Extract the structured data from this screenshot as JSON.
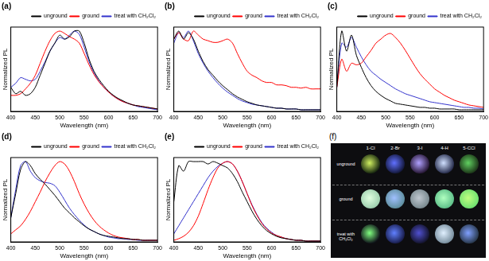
{
  "chart_data": [
    {
      "type": "line",
      "title": "(a)",
      "x_label": "Wavelength (nm)",
      "y_label": "Normalized PL",
      "tick_labels": "x",
      "legend": "upper right",
      "x": [
        400,
        410,
        420,
        430,
        440,
        450,
        460,
        470,
        480,
        490,
        500,
        510,
        520,
        530,
        540,
        550,
        560,
        570,
        580,
        590,
        600,
        610,
        620,
        630,
        640,
        650,
        660,
        670,
        680,
        690,
        700
      ],
      "xlim": [
        400,
        700
      ],
      "xticks": [
        400,
        450,
        500,
        550,
        600,
        650,
        700
      ],
      "ylim": [
        0,
        1.05
      ],
      "series": [
        {
          "name": "unground",
          "color": "#000000",
          "values": [
            0.3,
            0.22,
            0.25,
            0.2,
            0.22,
            0.3,
            0.45,
            0.6,
            0.75,
            0.85,
            0.95,
            0.9,
            0.93,
            1.0,
            1.0,
            0.85,
            0.65,
            0.5,
            0.4,
            0.32,
            0.25,
            0.2,
            0.16,
            0.13,
            0.1,
            0.08,
            0.07,
            0.06,
            0.05,
            0.04,
            0.03
          ]
        },
        {
          "name": "ground",
          "color": "#ff0000",
          "values": [
            0.2,
            0.2,
            0.22,
            0.28,
            0.35,
            0.45,
            0.6,
            0.75,
            0.88,
            0.97,
            1.0,
            0.97,
            0.93,
            0.9,
            0.85,
            0.72,
            0.58,
            0.46,
            0.37,
            0.3,
            0.24,
            0.19,
            0.15,
            0.12,
            0.1,
            0.08,
            0.07,
            0.06,
            0.05,
            0.04,
            0.03
          ]
        },
        {
          "name": "treat with CH₂Cl₂",
          "color": "#3333cc",
          "values": [
            0.3,
            0.35,
            0.42,
            0.4,
            0.38,
            0.4,
            0.5,
            0.62,
            0.75,
            0.85,
            0.92,
            0.9,
            0.95,
            1.0,
            0.96,
            0.8,
            0.62,
            0.48,
            0.38,
            0.3,
            0.24,
            0.19,
            0.15,
            0.12,
            0.1,
            0.08,
            0.06,
            0.05,
            0.04,
            0.03,
            0.02
          ]
        }
      ]
    },
    {
      "type": "line",
      "title": "(b)",
      "x_label": "Wavelength (nm)",
      "y_label": "Normalized PL",
      "tick_labels": "x",
      "legend": "upper right",
      "x": [
        400,
        410,
        420,
        430,
        440,
        450,
        460,
        470,
        480,
        490,
        500,
        510,
        520,
        530,
        540,
        550,
        560,
        570,
        580,
        590,
        600,
        610,
        620,
        630,
        640,
        650,
        660,
        670,
        680,
        690,
        700
      ],
      "xlim": [
        400,
        700
      ],
      "xticks": [
        400,
        450,
        500,
        550,
        600,
        650,
        700
      ],
      "ylim": [
        0,
        1.05
      ],
      "series": [
        {
          "name": "unground",
          "color": "#000000",
          "values": [
            0.9,
            1.0,
            0.9,
            0.98,
            0.9,
            0.75,
            0.62,
            0.52,
            0.45,
            0.38,
            0.32,
            0.27,
            0.22,
            0.18,
            0.15,
            0.12,
            0.1,
            0.08,
            0.07,
            0.06,
            0.05,
            0.04,
            0.04,
            0.03,
            0.03,
            0.03,
            0.02,
            0.02,
            0.02,
            0.02,
            0.02
          ]
        },
        {
          "name": "ground",
          "color": "#ff0000",
          "values": [
            0.9,
            0.98,
            0.9,
            0.88,
            1.0,
            0.95,
            0.9,
            0.88,
            0.86,
            0.86,
            0.88,
            0.9,
            0.85,
            0.72,
            0.6,
            0.5,
            0.45,
            0.42,
            0.38,
            0.36,
            0.36,
            0.33,
            0.33,
            0.32,
            0.3,
            0.3,
            0.29,
            0.3,
            0.28,
            0.28,
            0.28
          ]
        },
        {
          "name": "treat with CH₂Cl₂",
          "color": "#3333cc",
          "values": [
            0.85,
            0.98,
            0.92,
            1.0,
            0.88,
            0.72,
            0.6,
            0.5,
            0.42,
            0.35,
            0.29,
            0.24,
            0.2,
            0.16,
            0.13,
            0.11,
            0.09,
            0.08,
            0.07,
            0.06,
            0.05,
            0.04,
            0.04,
            0.03,
            0.03,
            0.03,
            0.02,
            0.02,
            0.02,
            0.02,
            0.02
          ]
        }
      ]
    },
    {
      "type": "line",
      "title": "(c)",
      "x_label": "Wavelength (nm)",
      "y_label": "Normalized PL",
      "tick_labels": "x",
      "legend": "upper right",
      "x": [
        400,
        410,
        420,
        430,
        440,
        450,
        460,
        470,
        480,
        490,
        500,
        510,
        520,
        530,
        540,
        550,
        560,
        570,
        580,
        590,
        600,
        610,
        620,
        630,
        640,
        650,
        660,
        670,
        680,
        690,
        700
      ],
      "xlim": [
        400,
        700
      ],
      "xticks": [
        400,
        450,
        500,
        550,
        600,
        650,
        700
      ],
      "ylim": [
        0,
        1.05
      ],
      "series": [
        {
          "name": "unground",
          "color": "#000000",
          "values": [
            0.3,
            1.0,
            0.75,
            0.95,
            0.7,
            0.55,
            0.42,
            0.32,
            0.25,
            0.2,
            0.16,
            0.13,
            0.1,
            0.09,
            0.08,
            0.07,
            0.06,
            0.05,
            0.05,
            0.04,
            0.04,
            0.03,
            0.03,
            0.03,
            0.03,
            0.02,
            0.02,
            0.02,
            0.02,
            0.02,
            0.02
          ]
        },
        {
          "name": "ground",
          "color": "#ff0000",
          "values": [
            0.3,
            0.65,
            0.5,
            0.6,
            0.58,
            0.6,
            0.68,
            0.76,
            0.85,
            0.9,
            0.95,
            0.97,
            0.92,
            0.85,
            0.76,
            0.66,
            0.56,
            0.47,
            0.4,
            0.34,
            0.28,
            0.24,
            0.2,
            0.17,
            0.14,
            0.12,
            0.1,
            0.08,
            0.07,
            0.06,
            0.05
          ]
        },
        {
          "name": "treat with CH₂Cl₂",
          "color": "#3333cc",
          "values": [
            0.3,
            0.85,
            0.8,
            0.92,
            0.8,
            0.68,
            0.58,
            0.5,
            0.45,
            0.4,
            0.36,
            0.32,
            0.28,
            0.25,
            0.22,
            0.2,
            0.18,
            0.16,
            0.14,
            0.12,
            0.11,
            0.1,
            0.09,
            0.08,
            0.07,
            0.06,
            0.05,
            0.05,
            0.04,
            0.04,
            0.03
          ]
        }
      ]
    },
    {
      "type": "line",
      "title": "(d)",
      "x_label": "Wavelength (nm)",
      "y_label": "Normalized PL",
      "tick_labels": "x",
      "legend": "upper right",
      "x": [
        400,
        410,
        420,
        430,
        440,
        450,
        460,
        470,
        480,
        490,
        500,
        510,
        520,
        530,
        540,
        550,
        560,
        570,
        580,
        590,
        600,
        610,
        620,
        630,
        640,
        650,
        660,
        670,
        680,
        690,
        700
      ],
      "xlim": [
        400,
        700
      ],
      "xticks": [
        400,
        450,
        500,
        550,
        600,
        650,
        700
      ],
      "ylim": [
        0,
        1.05
      ],
      "series": [
        {
          "name": "unground",
          "color": "#000000",
          "values": [
            0.3,
            0.6,
            0.9,
            1.0,
            0.95,
            0.85,
            0.78,
            0.72,
            0.65,
            0.58,
            0.5,
            0.42,
            0.36,
            0.3,
            0.25,
            0.2,
            0.16,
            0.13,
            0.1,
            0.08,
            0.07,
            0.06,
            0.05,
            0.04,
            0.04,
            0.03,
            0.03,
            0.02,
            0.02,
            0.02,
            0.02
          ]
        },
        {
          "name": "ground",
          "color": "#ff0000",
          "values": [
            0.1,
            0.15,
            0.2,
            0.28,
            0.38,
            0.5,
            0.62,
            0.75,
            0.86,
            0.95,
            1.0,
            0.97,
            0.88,
            0.75,
            0.6,
            0.47,
            0.36,
            0.27,
            0.2,
            0.15,
            0.11,
            0.08,
            0.06,
            0.05,
            0.04,
            0.03,
            0.03,
            0.02,
            0.02,
            0.02,
            0.02
          ]
        },
        {
          "name": "treat with CH₂Cl₂",
          "color": "#3333cc",
          "values": [
            0.3,
            0.65,
            0.95,
            1.0,
            0.88,
            0.8,
            0.76,
            0.74,
            0.73,
            0.7,
            0.62,
            0.52,
            0.42,
            0.34,
            0.27,
            0.21,
            0.16,
            0.13,
            0.1,
            0.08,
            0.06,
            0.05,
            0.04,
            0.04,
            0.03,
            0.03,
            0.02,
            0.02,
            0.02,
            0.02,
            0.02
          ]
        }
      ]
    },
    {
      "type": "line",
      "title": "(e)",
      "x_label": "Wavelength (nm)",
      "y_label": "Normalized PL",
      "tick_labels": "x",
      "legend": "upper right",
      "x": [
        400,
        410,
        420,
        430,
        440,
        450,
        460,
        470,
        480,
        490,
        500,
        510,
        520,
        530,
        540,
        550,
        560,
        570,
        580,
        590,
        600,
        610,
        620,
        630,
        640,
        650,
        660,
        670,
        680,
        690,
        700
      ],
      "xlim": [
        400,
        700
      ],
      "xticks": [
        400,
        450,
        500,
        550,
        600,
        650,
        700
      ],
      "ylim": [
        0,
        1.05
      ],
      "series": [
        {
          "name": "unground",
          "color": "#000000",
          "values": [
            0.5,
            0.95,
            0.88,
            1.0,
            1.0,
            1.0,
            1.0,
            0.97,
            1.0,
            0.98,
            0.95,
            0.92,
            0.85,
            0.75,
            0.62,
            0.5,
            0.38,
            0.28,
            0.2,
            0.14,
            0.1,
            0.07,
            0.05,
            0.04,
            0.03,
            0.02,
            0.02,
            0.01,
            0.01,
            0.01,
            0.01
          ]
        },
        {
          "name": "ground",
          "color": "#ff0000",
          "values": [
            0.02,
            0.04,
            0.07,
            0.12,
            0.2,
            0.32,
            0.48,
            0.65,
            0.8,
            0.92,
            0.98,
            1.0,
            0.97,
            0.88,
            0.75,
            0.6,
            0.45,
            0.33,
            0.23,
            0.16,
            0.11,
            0.08,
            0.06,
            0.04,
            0.03,
            0.02,
            0.02,
            0.01,
            0.01,
            0.01,
            0.01
          ]
        },
        {
          "name": "treat with CH₂Cl₂",
          "color": "#3333cc",
          "values": [
            0.1,
            0.2,
            0.3,
            0.4,
            0.5,
            0.6,
            0.7,
            0.8,
            0.88,
            0.94,
            0.98,
            1.0,
            0.97,
            0.88,
            0.75,
            0.6,
            0.46,
            0.34,
            0.24,
            0.17,
            0.12,
            0.08,
            0.06,
            0.04,
            0.03,
            0.02,
            0.02,
            0.01,
            0.01,
            0.01,
            0.01
          ]
        }
      ]
    }
  ],
  "photo_panel": {
    "label": "(f)",
    "columns": [
      "1-Cl",
      "2-Br",
      "3-I",
      "4-H",
      "5-CCl"
    ],
    "rows": [
      "unground",
      "ground",
      "treat with CH₂Cl₂"
    ]
  }
}
